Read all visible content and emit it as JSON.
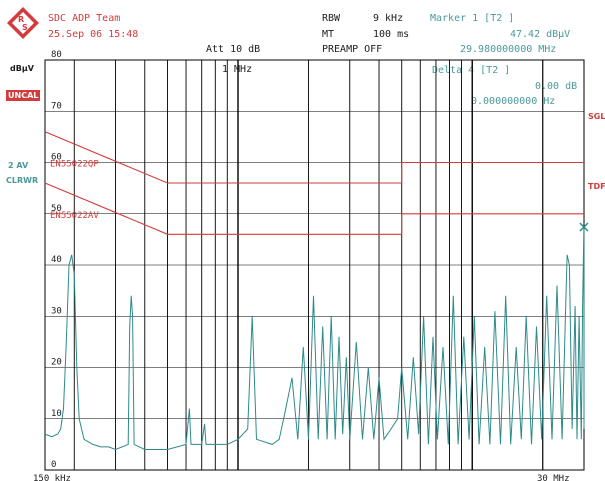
{
  "header": {
    "title": "SDC ADP Team",
    "datetime": "25.Sep 06 15:48",
    "rbw_label": "RBW",
    "rbw_value": "9 kHz",
    "mt_label": "MT",
    "mt_value": "100 ms",
    "att": "Att 10 dB",
    "preamp": "PREAMP OFF",
    "marker_label": "Marker 1 [T2 ]",
    "marker_level": "47.42 dBµV",
    "marker_freq": "29.980000000 MHz",
    "delta_label": "Delta 4 [T2 ]",
    "delta_level": "0.00 dB",
    "delta_freq": "0.000000000 Hz",
    "freq_marker": "1 MHz"
  },
  "side": {
    "unit": "dBµV",
    "uncal": "UNCAL",
    "trace_mode_1": "2 AV",
    "trace_mode_2": "CLRWR",
    "sgl": "SGL",
    "tdf": "TDF"
  },
  "colors": {
    "trace": "#2f8a8a",
    "limit": "#d23c3c",
    "grid": "#000000",
    "text_red": "#d23c3c",
    "text_teal": "#4a9a9a",
    "logo": "#d23c3c"
  },
  "chart_data": {
    "type": "line",
    "x_scale": "log",
    "xlim_label": [
      "150 kHz",
      "30 MHz"
    ],
    "xlim_mhz": [
      0.15,
      30
    ],
    "ylim": [
      0,
      80
    ],
    "ylabel": "dBµV",
    "y_ticks": [
      0,
      10,
      20,
      30,
      40,
      50,
      60,
      70,
      80
    ],
    "x_ticks_labeled": [
      "150 kHz",
      "1 MHz",
      "30 MHz"
    ],
    "limit_lines": [
      {
        "name": "EN55022QP",
        "points_mhz_db": [
          [
            0.15,
            66
          ],
          [
            0.5,
            56
          ],
          [
            5,
            56
          ],
          [
            5,
            60
          ],
          [
            30,
            60
          ]
        ]
      },
      {
        "name": "EN55022AV",
        "points_mhz_db": [
          [
            0.15,
            56
          ],
          [
            0.5,
            46
          ],
          [
            5,
            46
          ],
          [
            5,
            50
          ],
          [
            30,
            50
          ]
        ]
      }
    ],
    "marker": {
      "name": "1",
      "x_mhz": 29.98,
      "y_db": 47.42
    },
    "series": [
      {
        "values_mhz_db": [
          [
            0.15,
            7
          ],
          [
            0.16,
            6.5
          ],
          [
            0.17,
            7
          ],
          [
            0.175,
            8
          ],
          [
            0.18,
            12
          ],
          [
            0.185,
            25
          ],
          [
            0.19,
            40
          ],
          [
            0.195,
            42
          ],
          [
            0.2,
            38
          ],
          [
            0.205,
            20
          ],
          [
            0.21,
            10
          ],
          [
            0.22,
            6
          ],
          [
            0.24,
            5
          ],
          [
            0.26,
            4.5
          ],
          [
            0.28,
            4.5
          ],
          [
            0.3,
            4
          ],
          [
            0.32,
            4.5
          ],
          [
            0.34,
            5
          ],
          [
            0.345,
            28
          ],
          [
            0.35,
            34
          ],
          [
            0.355,
            30
          ],
          [
            0.36,
            5
          ],
          [
            0.4,
            4
          ],
          [
            0.45,
            4
          ],
          [
            0.5,
            4
          ],
          [
            0.55,
            4.5
          ],
          [
            0.6,
            5
          ],
          [
            0.62,
            12
          ],
          [
            0.63,
            5
          ],
          [
            0.7,
            5
          ],
          [
            0.72,
            9
          ],
          [
            0.73,
            5
          ],
          [
            0.8,
            5
          ],
          [
            0.9,
            5
          ],
          [
            1.0,
            6
          ],
          [
            1.1,
            8
          ],
          [
            1.15,
            30
          ],
          [
            1.2,
            6
          ],
          [
            1.4,
            5
          ],
          [
            1.5,
            6
          ],
          [
            1.6,
            12
          ],
          [
            1.7,
            18
          ],
          [
            1.8,
            6
          ],
          [
            1.9,
            24
          ],
          [
            2.0,
            6
          ],
          [
            2.1,
            34
          ],
          [
            2.2,
            6
          ],
          [
            2.3,
            28
          ],
          [
            2.4,
            6
          ],
          [
            2.5,
            30
          ],
          [
            2.6,
            6
          ],
          [
            2.7,
            26
          ],
          [
            2.8,
            7
          ],
          [
            2.9,
            22
          ],
          [
            3.0,
            6
          ],
          [
            3.2,
            25
          ],
          [
            3.4,
            6
          ],
          [
            3.6,
            20
          ],
          [
            3.8,
            6
          ],
          [
            4.0,
            18
          ],
          [
            4.2,
            6
          ],
          [
            4.5,
            8
          ],
          [
            4.8,
            10
          ],
          [
            5.0,
            20
          ],
          [
            5.3,
            6
          ],
          [
            5.6,
            22
          ],
          [
            5.9,
            7
          ],
          [
            6.2,
            30
          ],
          [
            6.5,
            5
          ],
          [
            6.8,
            26
          ],
          [
            7.1,
            6
          ],
          [
            7.5,
            24
          ],
          [
            7.9,
            5
          ],
          [
            8.3,
            34
          ],
          [
            8.7,
            5
          ],
          [
            9.2,
            26
          ],
          [
            9.7,
            6
          ],
          [
            10.2,
            30
          ],
          [
            10.7,
            5
          ],
          [
            11.3,
            24
          ],
          [
            11.9,
            5
          ],
          [
            12.5,
            31
          ],
          [
            13.2,
            5
          ],
          [
            13.9,
            34
          ],
          [
            14.6,
            5
          ],
          [
            15.4,
            24
          ],
          [
            16.2,
            6
          ],
          [
            17.0,
            30
          ],
          [
            17.9,
            5
          ],
          [
            18.8,
            28
          ],
          [
            19.8,
            6
          ],
          [
            20.8,
            34
          ],
          [
            21.9,
            6
          ],
          [
            23.0,
            36
          ],
          [
            24.2,
            6
          ],
          [
            25.4,
            42
          ],
          [
            26.0,
            40
          ],
          [
            26.7,
            8
          ],
          [
            27.5,
            32
          ],
          [
            28.0,
            6
          ],
          [
            28.6,
            30
          ],
          [
            29.2,
            6
          ],
          [
            29.6,
            32
          ],
          [
            29.98,
            47.42
          ],
          [
            30,
            8
          ]
        ]
      }
    ]
  }
}
